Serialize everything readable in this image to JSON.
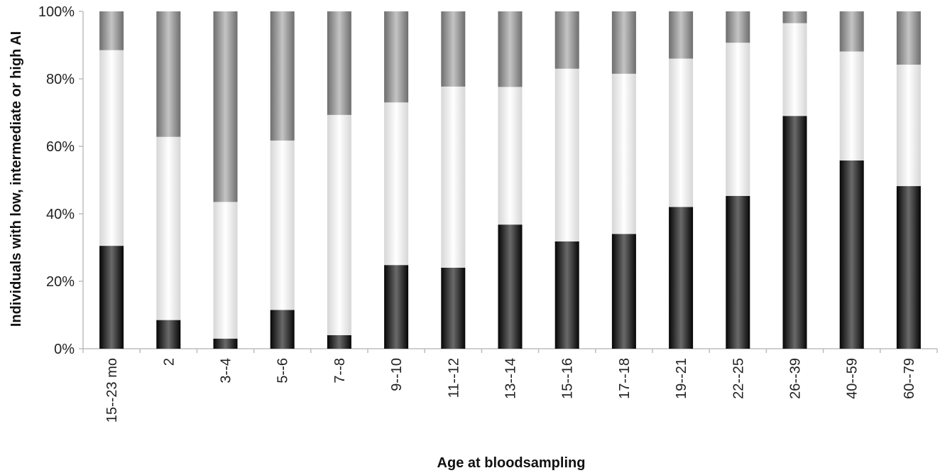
{
  "chart_data": {
    "type": "bar",
    "stacked": true,
    "percent_stacked": true,
    "title": "",
    "xlabel": "Age at bloodsampling",
    "ylabel": "Individuals with low, intermediate or high AI",
    "ylim": [
      0,
      100
    ],
    "y_ticks": [
      "0%",
      "20%",
      "40%",
      "60%",
      "80%",
      "100%"
    ],
    "grid": false,
    "legend": "none",
    "categories": [
      "15--23 mo",
      "2",
      "3--4",
      "5--6",
      "7--8",
      "9--10",
      "11--12",
      "13--14",
      "15--16",
      "17--18",
      "19--21",
      "22--25",
      "26--39",
      "40--59",
      "60--79"
    ],
    "series": [
      {
        "color": "#1a1a1a",
        "values": [
          30.5,
          8.5,
          3.0,
          11.5,
          4.0,
          24.8,
          24.0,
          36.8,
          31.8,
          34.0,
          42.0,
          45.3,
          69.0,
          55.8,
          48.2
        ]
      },
      {
        "color": "#f0f0f0",
        "values": [
          58.0,
          54.3,
          40.5,
          50.2,
          65.3,
          48.2,
          53.7,
          40.8,
          51.2,
          47.5,
          44.0,
          45.4,
          27.5,
          32.3,
          36.0
        ]
      },
      {
        "color": "#9a9a9a",
        "values": [
          11.5,
          37.2,
          56.5,
          38.3,
          30.7,
          27.0,
          22.3,
          22.4,
          17.0,
          18.5,
          14.0,
          9.3,
          3.5,
          11.9,
          15.8
        ]
      }
    ]
  }
}
